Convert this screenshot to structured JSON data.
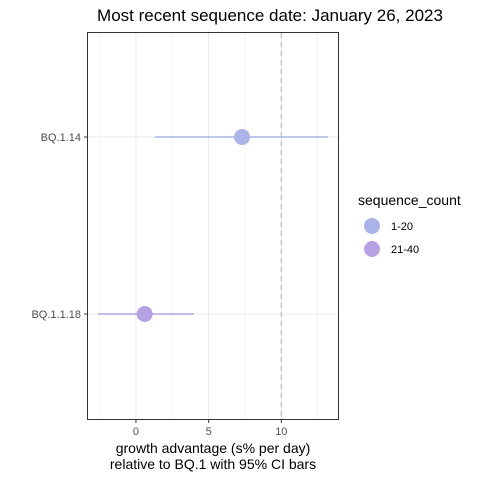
{
  "chart_data": {
    "type": "scatter",
    "title": "Most recent sequence date: January 26, 2023",
    "xlabel_line1": "growth advantage (s% per day)",
    "xlabel_line2": "relative to  BQ.1  with 95% CI bars",
    "ylabel": "",
    "xlim": [
      -3.3,
      13.9
    ],
    "x_ticks": [
      0,
      5,
      10
    ],
    "x_tick_labels": [
      "0",
      "5",
      "10"
    ],
    "reference_line_x": 10,
    "grid": true,
    "categories": [
      "BQ.1.14",
      "BQ.1.1.18"
    ],
    "points": [
      {
        "category": "BQ.1.14",
        "estimate": 7.3,
        "ci_low": 1.3,
        "ci_high": 13.2,
        "group": "1-20"
      },
      {
        "category": "BQ.1.1.18",
        "estimate": 0.6,
        "ci_low": -2.6,
        "ci_high": 4.0,
        "group": "21-40"
      }
    ],
    "legend": {
      "title": "sequence_count",
      "position": "right",
      "entries": [
        {
          "label": "1-20",
          "color": "#aab4e8"
        },
        {
          "label": "21-40",
          "color": "#b6a2e2"
        }
      ]
    },
    "colors": {
      "1-20": "#aab4e8",
      "21-40": "#b6a2e2",
      "panel_border": "#333333",
      "grid": "#ebebeb",
      "reference_line": "#bdbdbd"
    }
  }
}
